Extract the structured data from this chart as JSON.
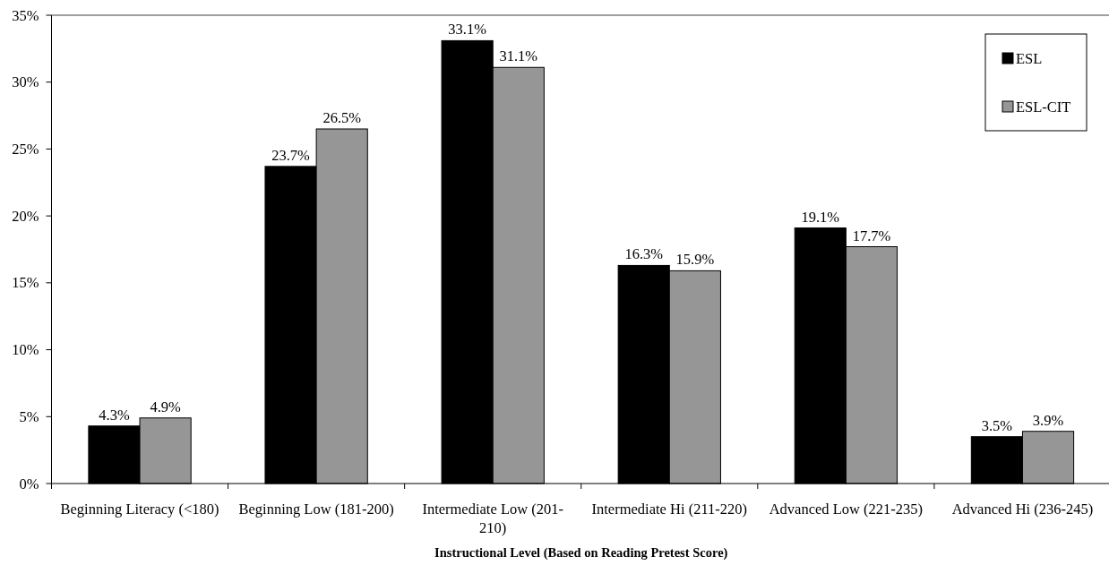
{
  "chart_data": {
    "type": "bar",
    "xlabel": "Instructional Level (Based on Reading Pretest Score)",
    "categories": [
      "Beginning Literacy (<180)",
      "Beginning Low (181-200)",
      "Intermediate Low (201-210)",
      "Intermediate Hi (211-220)",
      "Advanced Low (221-235)",
      "Advanced Hi (236-245)"
    ],
    "series": [
      {
        "name": "ESL",
        "color": "#000000",
        "values": [
          4.3,
          23.7,
          33.1,
          16.3,
          19.1,
          3.5
        ],
        "value_labels": [
          "4.3%",
          "23.7%",
          "33.1%",
          "16.3%",
          "19.1%",
          "3.5%"
        ]
      },
      {
        "name": "ESL-CIT",
        "color": "#969696",
        "values": [
          4.9,
          26.5,
          31.1,
          15.9,
          17.7,
          3.9
        ],
        "value_labels": [
          "4.9%",
          "26.5%",
          "31.1%",
          "15.9%",
          "17.7%",
          "3.9%"
        ]
      }
    ],
    "ylim": [
      0,
      35
    ],
    "yticks": [
      {
        "value": 0,
        "label": "0%"
      },
      {
        "value": 5,
        "label": "5%"
      },
      {
        "value": 10,
        "label": "10%"
      },
      {
        "value": 15,
        "label": "15%"
      },
      {
        "value": 20,
        "label": "20%"
      },
      {
        "value": 25,
        "label": "25%"
      },
      {
        "value": 30,
        "label": "30%"
      },
      {
        "value": 35,
        "label": "35%"
      }
    ],
    "legend": "top right"
  }
}
